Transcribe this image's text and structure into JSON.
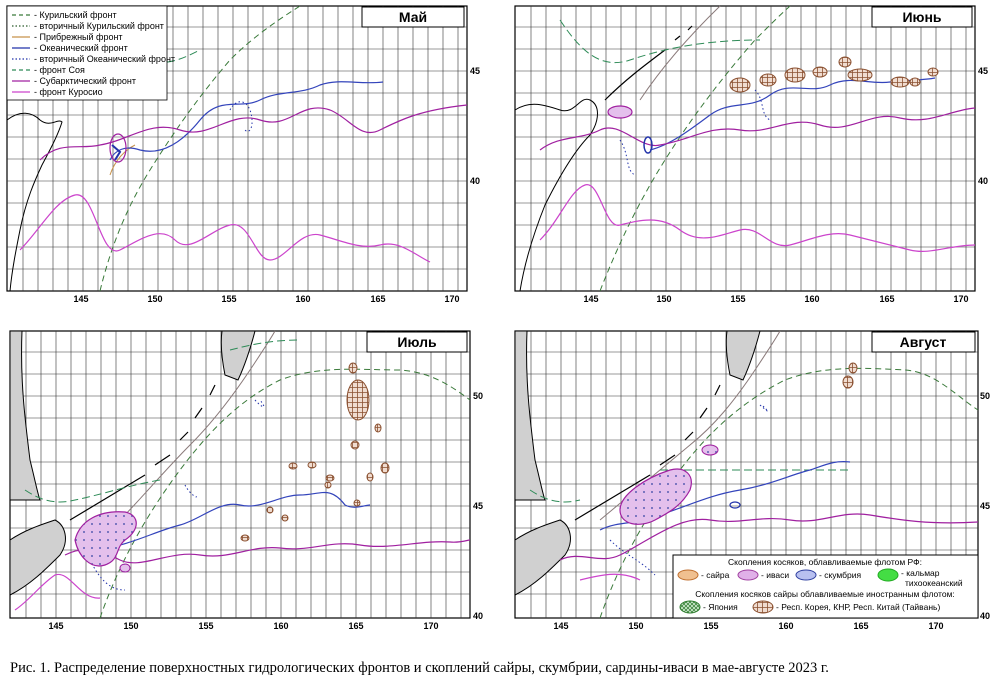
{
  "panels": [
    {
      "id": "may",
      "title": "Май",
      "xticks": [
        "145",
        "150",
        "155",
        "160",
        "165",
        "170"
      ],
      "yticks": [
        "45",
        "40"
      ]
    },
    {
      "id": "june",
      "title": "Июнь",
      "xticks": [
        "145",
        "150",
        "155",
        "160",
        "165",
        "170"
      ],
      "yticks": [
        "45",
        "40"
      ]
    },
    {
      "id": "july",
      "title": "Июль",
      "xticks": [
        "145",
        "150",
        "155",
        "160",
        "165",
        "170"
      ],
      "yticks": [
        "50",
        "45",
        "40"
      ]
    },
    {
      "id": "august",
      "title": "Август",
      "xticks": [
        "145",
        "150",
        "155",
        "160",
        "165",
        "170"
      ],
      "yticks": [
        "50",
        "45",
        "40"
      ]
    }
  ],
  "fronts_legend": [
    {
      "label": "- Курильский фронт",
      "color": "#3a7a3a",
      "dash": "dashed"
    },
    {
      "label": "- вторичный Курильский фронт",
      "color": "#2a5a2a",
      "dash": "dotted"
    },
    {
      "label": "- Прибрежный фронт",
      "color": "#c8924a",
      "dash": "solid"
    },
    {
      "label": "- Океанический фронт",
      "color": "#2233aa",
      "dash": "solid"
    },
    {
      "label": "- вторичный Океанический фронт",
      "color": "#2233aa",
      "dash": "dotted"
    },
    {
      "label": "- фронт Соя",
      "color": "#2e8b57",
      "dash": "dashed"
    },
    {
      "label": "- Субарктический фронт",
      "color": "#a020a0",
      "dash": "solid"
    },
    {
      "label": "- фронт Куросио",
      "color": "#cc44cc",
      "dash": "solid"
    }
  ],
  "fish_legend": {
    "title_rf": "Скопления косяков, облавливаемые флотом РФ:",
    "rf_items": [
      {
        "label": "- сайра",
        "fill": "#f0c090",
        "stroke": "#c07030"
      },
      {
        "label": "- иваси",
        "fill": "#e0b0e8",
        "stroke": "#a040a0"
      },
      {
        "label": "- скумбрия",
        "fill": "#b8c0f0",
        "stroke": "#3040a0"
      },
      {
        "label": "- кальмар",
        "label2": "тихоокеанский",
        "fill": "#44dd44",
        "stroke": "#22aa22"
      }
    ],
    "title_foreign": "Скопления косяков сайры облавливаемые иностранным флотом:",
    "foreign_items": [
      {
        "label": "- Япония",
        "fill": "#a8d8a8",
        "stroke": "#2a7a2a"
      },
      {
        "label": "- Респ. Корея, КНР, Респ. Китай (Тайвань)",
        "fill": "#e8c8b0",
        "stroke": "#8a5030"
      }
    ]
  },
  "caption": "Рис.  1. Распределение поверхностных гидрологических фронтов и скоплений сайры, скумбрии, сардины-иваси в мае-августе 2023 г."
}
